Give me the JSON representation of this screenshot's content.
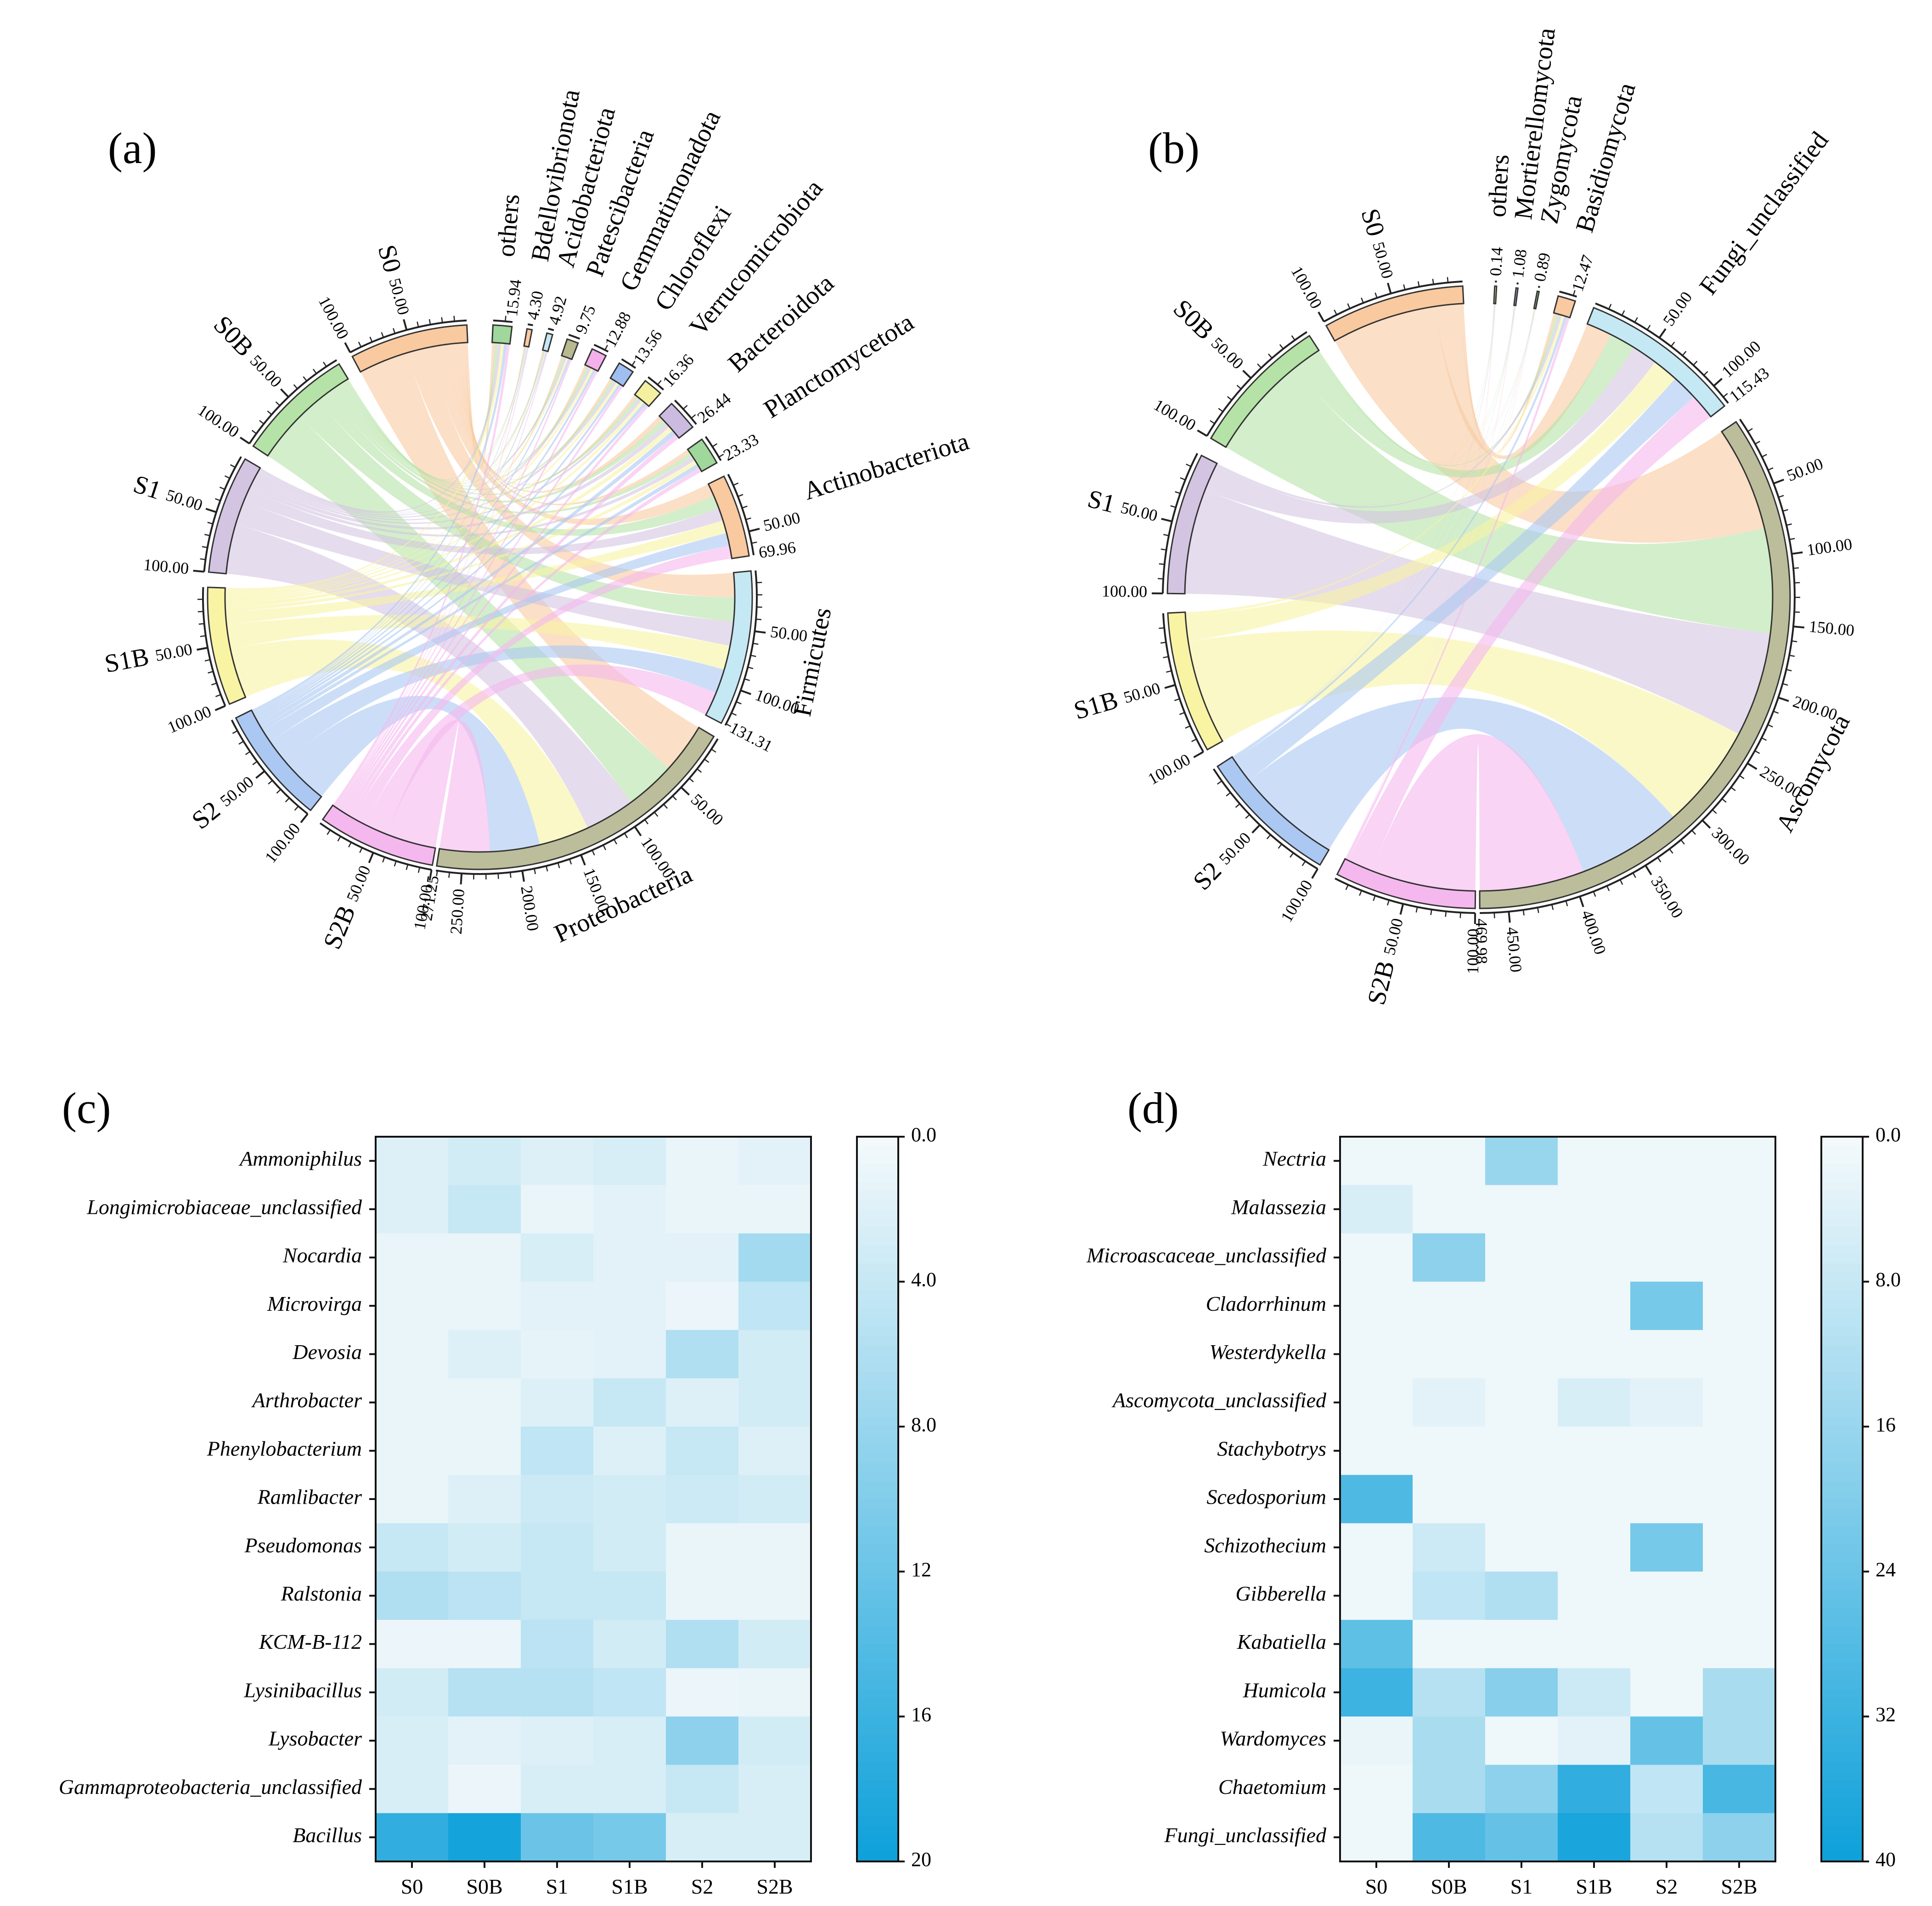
{
  "panels": [
    "(a)",
    "(b)",
    "(c)",
    "(d)"
  ],
  "chart_data": [
    {
      "type": "chord",
      "panel": "(a)",
      "samples": [
        {
          "name": "S0",
          "color": "#f9c9a0",
          "total": 100,
          "ticks": [
            "50.00",
            "100.00"
          ]
        },
        {
          "name": "S0B",
          "color": "#b5e2a6",
          "total": 100,
          "ticks": [
            "50.00",
            "100.00"
          ]
        },
        {
          "name": "S1",
          "color": "#d3c4e1",
          "total": 100,
          "ticks": [
            "50.00",
            "100.00"
          ]
        },
        {
          "name": "S1B",
          "color": "#f9f3a4",
          "total": 100,
          "ticks": [
            "50.00",
            "100.00"
          ]
        },
        {
          "name": "S2",
          "color": "#aac8f2",
          "total": 100,
          "ticks": [
            "50.00",
            "100.00"
          ]
        },
        {
          "name": "S2B",
          "color": "#f5b8ee",
          "total": 100,
          "ticks": [
            "50.00",
            "100.00"
          ]
        }
      ],
      "taxa": [
        {
          "name": "Proteobacteria",
          "color": "#bcbd9a",
          "total": 271.25,
          "total_label": "271.25",
          "ticks": [
            "50.00",
            "100.00",
            "150.00",
            "200.00",
            "250.00"
          ]
        },
        {
          "name": "Firmicutes",
          "color": "#c5e8f5",
          "total": 131.31,
          "total_label": "131.31",
          "ticks": [
            "50.00",
            "100.00"
          ]
        },
        {
          "name": "Actinobacteriota",
          "color": "#f9c9a0",
          "total": 69.96,
          "total_label": "69.96",
          "ticks": [
            "50.00"
          ]
        },
        {
          "name": "Planctomycetota",
          "color": "#9fd89a",
          "total": 23.33,
          "total_label": "23.33",
          "ticks": []
        },
        {
          "name": "Bacteroidota",
          "color": "#cbbbe0",
          "total": 26.44,
          "total_label": "26.44",
          "ticks": []
        },
        {
          "name": "Verrucomicrobiota",
          "color": "#f4f0a0",
          "total": 16.36,
          "total_label": "16.36",
          "ticks": []
        },
        {
          "name": "Chloroflexi",
          "color": "#9ebff0",
          "total": 13.56,
          "total_label": "13.56",
          "ticks": []
        },
        {
          "name": "Gemmatimonadota",
          "color": "#f3b0ea",
          "total": 12.88,
          "total_label": "12.88",
          "ticks": []
        },
        {
          "name": "Patescibacteria",
          "color": "#b8b98f",
          "total": 9.75,
          "total_label": "9.75",
          "ticks": []
        },
        {
          "name": "Acidobacteriota",
          "color": "#c5e8f5",
          "total": 4.92,
          "total_label": "4.92",
          "ticks": []
        },
        {
          "name": "Bdellovibrionota",
          "color": "#f9c9a0",
          "total": 4.3,
          "total_label": "4.30",
          "ticks": []
        },
        {
          "name": "others",
          "color": "#9fd89a",
          "total": 15.94,
          "total_label": "15.94",
          "ticks": []
        }
      ]
    },
    {
      "type": "chord",
      "panel": "(b)",
      "samples": [
        {
          "name": "S0",
          "color": "#f9c9a0",
          "total": 100,
          "ticks": [
            "50.00",
            "100.00"
          ]
        },
        {
          "name": "S0B",
          "color": "#b5e2a6",
          "total": 100,
          "ticks": [
            "50.00",
            "100.00"
          ]
        },
        {
          "name": "S1",
          "color": "#d3c4e1",
          "total": 100,
          "ticks": [
            "50.00",
            "100.00"
          ]
        },
        {
          "name": "S1B",
          "color": "#f9f3a4",
          "total": 100,
          "ticks": [
            "50.00",
            "100.00"
          ]
        },
        {
          "name": "S2",
          "color": "#aac8f2",
          "total": 100,
          "ticks": [
            "50.00",
            "100.00"
          ]
        },
        {
          "name": "S2B",
          "color": "#f5b8ee",
          "total": 100,
          "ticks": [
            "50.00",
            "100.00"
          ]
        }
      ],
      "taxa": [
        {
          "name": "Ascomycota",
          "color": "#bcbd9a",
          "total": 469.98,
          "total_label": "469.98",
          "ticks": [
            "50.00",
            "100.00",
            "150.00",
            "200.00",
            "250.00",
            "300.00",
            "350.00",
            "400.00",
            "450.00"
          ]
        },
        {
          "name": "Fungi_unclassified",
          "color": "#c5e8f5",
          "total": 115.43,
          "total_label": "115.43",
          "ticks": [
            "50.00",
            "100.00"
          ]
        },
        {
          "name": "Basidiomycota",
          "color": "#f9c9a0",
          "total": 12.47,
          "total_label": "12.47",
          "ticks": []
        },
        {
          "name": "Zygomycota",
          "color": "#9fd89a",
          "total": 0.89,
          "total_label": "0.89",
          "ticks": []
        },
        {
          "name": "Mortierellomycota",
          "color": "#cbbbe0",
          "total": 1.08,
          "total_label": "1.08",
          "ticks": []
        },
        {
          "name": "others",
          "color": "#f4f0a0",
          "total": 0.14,
          "total_label": "0.14",
          "ticks": []
        }
      ]
    },
    {
      "type": "heatmap",
      "panel": "(c)",
      "columns": [
        "S0",
        "S0B",
        "S1",
        "S1B",
        "S2",
        "S2B"
      ],
      "rows": [
        "Ammoniphilus",
        "Longimicrobiaceae_unclassified",
        "Nocardia",
        "Microvirga",
        "Devosia",
        "Arthrobacter",
        "Phenylobacterium",
        "Ramlibacter",
        "Pseudomonas",
        "Ralstonia",
        "KCM-B-112",
        "Lysinibacillus",
        "Lysobacter",
        "Gammaproteobacteria_unclassified",
        "Bacillus"
      ],
      "values": [
        [
          2.0,
          3.0,
          2.0,
          2.5,
          1.0,
          1.5
        ],
        [
          2.0,
          4.0,
          1.0,
          1.5,
          1.0,
          1.0
        ],
        [
          1.0,
          1.0,
          2.5,
          1.5,
          1.5,
          7.0
        ],
        [
          1.0,
          1.0,
          1.5,
          1.5,
          0.8,
          4.5
        ],
        [
          1.0,
          2.0,
          1.2,
          1.5,
          6.0,
          3.0
        ],
        [
          1.0,
          1.0,
          2.0,
          4.0,
          2.0,
          3.0
        ],
        [
          1.0,
          1.0,
          4.5,
          2.0,
          4.0,
          2.0
        ],
        [
          1.0,
          2.0,
          3.5,
          3.0,
          3.5,
          3.0
        ],
        [
          4.0,
          3.0,
          4.0,
          3.0,
          1.0,
          1.0
        ],
        [
          6.0,
          5.0,
          4.0,
          4.0,
          1.0,
          1.0
        ],
        [
          0.8,
          0.8,
          5.0,
          3.0,
          6.0,
          3.0
        ],
        [
          3.0,
          5.5,
          5.5,
          4.5,
          0.8,
          1.0
        ],
        [
          2.5,
          1.5,
          2.0,
          2.5,
          9.0,
          3.0
        ],
        [
          2.5,
          0.8,
          2.5,
          2.5,
          4.0,
          2.5
        ],
        [
          17.0,
          19.5,
          12.0,
          11.0,
          2.5,
          2.5
        ]
      ],
      "colorbar": {
        "min": 0,
        "max": 20,
        "ticks": [
          "0.0",
          "4.0",
          "8.0",
          "12",
          "16",
          "20"
        ],
        "low_color": "#f4f9fb",
        "high_color": "#0fa1da"
      }
    },
    {
      "type": "heatmap",
      "panel": "(d)",
      "columns": [
        "S0",
        "S0B",
        "S1",
        "S1B",
        "S2",
        "S2B"
      ],
      "rows": [
        "Nectria",
        "Malassezia",
        "Microascaceae_unclassified",
        "Cladorrhinum",
        "Westerdykella",
        "Ascomycota_unclassified",
        "Stachybotrys",
        "Scedosporium",
        "Schizothecium",
        "Gibberella",
        "Kabatiella",
        "Humicola",
        "Wardomyces",
        "Chaetomium",
        "Fungi_unclassified"
      ],
      "values": [
        [
          1,
          1,
          16,
          1,
          1,
          1
        ],
        [
          5,
          1,
          1,
          1,
          1,
          1
        ],
        [
          1,
          18,
          1,
          1,
          1,
          1
        ],
        [
          1,
          1,
          1,
          1,
          22,
          1
        ],
        [
          1,
          1,
          1,
          1,
          1,
          1
        ],
        [
          1,
          3,
          1,
          5,
          3,
          1
        ],
        [
          1,
          1,
          1,
          1,
          1,
          1
        ],
        [
          29,
          1,
          1,
          1,
          1,
          1
        ],
        [
          1,
          7,
          1,
          1,
          22,
          1
        ],
        [
          1,
          9,
          12,
          1,
          1,
          1
        ],
        [
          26,
          1,
          1,
          1,
          1,
          1
        ],
        [
          32,
          11,
          19,
          7,
          1,
          13
        ],
        [
          2,
          13,
          1,
          3,
          25,
          13
        ],
        [
          1,
          13,
          18,
          34,
          9,
          30
        ],
        [
          1,
          29,
          25,
          38,
          11,
          18
        ]
      ],
      "colorbar": {
        "min": 0,
        "max": 40,
        "ticks": [
          "0.0",
          "8.0",
          "16",
          "24",
          "32",
          "40"
        ],
        "low_color": "#f4f9fb",
        "high_color": "#0fa1da"
      }
    }
  ]
}
